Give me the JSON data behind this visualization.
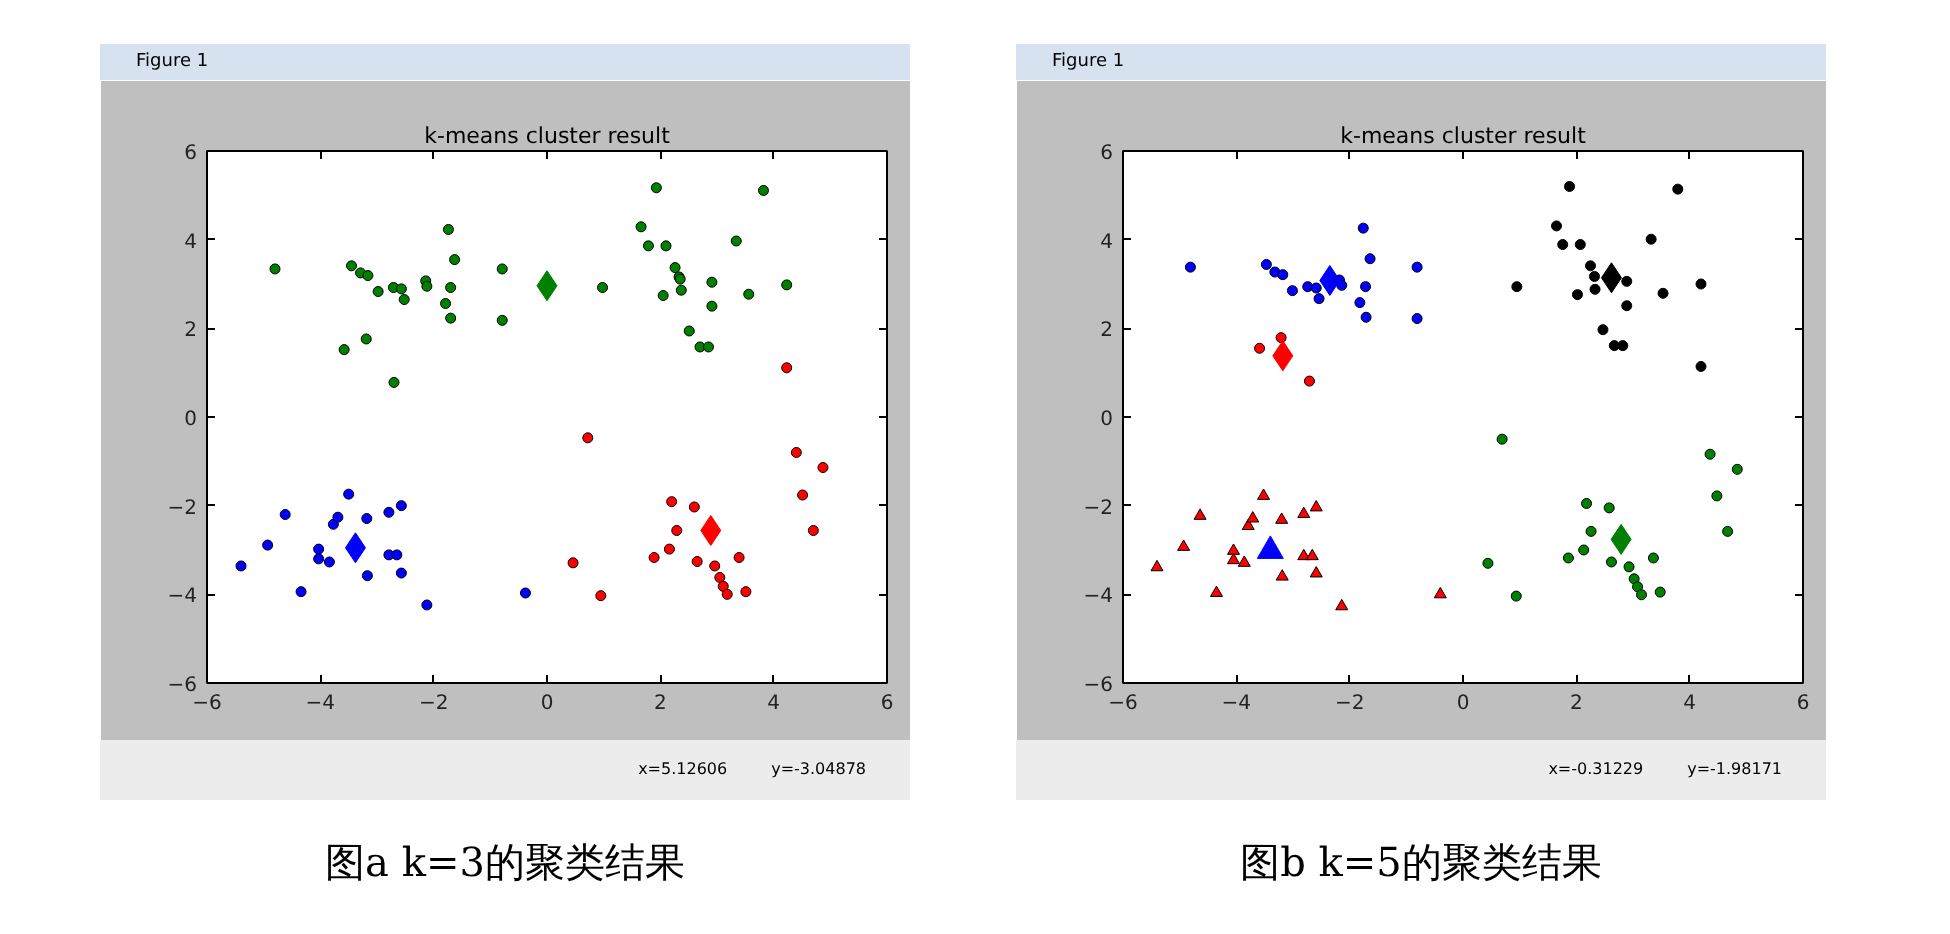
{
  "chart_data": [
    {
      "type": "scatter",
      "title": "k-means cluster result",
      "annotations": [
        "Figure 1",
        "x=5.12606",
        "y=-3.04878",
        "图a k=3的聚类结果"
      ],
      "xlim": [
        -6,
        6
      ],
      "ylim": [
        -6,
        6
      ],
      "xticks": [
        -6,
        -4,
        -2,
        0,
        2,
        4,
        6
      ],
      "yticks": [
        -6,
        -4,
        -2,
        0,
        2,
        4,
        6
      ],
      "series": [
        {
          "color": "#008000",
          "marker": "circle",
          "x": [
            -4.8,
            -3.45,
            -3.29,
            -3.16,
            -2.98,
            -2.71,
            -2.57,
            -2.52,
            -2.14,
            -2.12,
            -1.79,
            -1.74,
            -1.7,
            -1.7,
            -1.63,
            -3.58,
            -3.19,
            -2.7,
            -0.79,
            -0.79,
            0.98,
            1.66,
            1.79,
            2.1,
            1.93,
            2.26,
            2.33,
            2.35,
            2.37,
            2.05,
            2.51,
            2.7,
            2.85,
            2.91,
            2.91,
            3.34,
            3.56,
            3.82,
            4.23
          ],
          "values": [
            3.34,
            3.41,
            3.25,
            3.19,
            2.83,
            2.92,
            2.89,
            2.65,
            3.07,
            2.95,
            2.56,
            4.23,
            2.92,
            2.23,
            3.55,
            1.52,
            1.76,
            0.78,
            3.34,
            2.18,
            2.92,
            4.29,
            3.86,
            3.86,
            5.17,
            3.37,
            3.16,
            3.11,
            2.86,
            2.74,
            1.94,
            1.58,
            1.58,
            3.04,
            2.5,
            3.97,
            2.77,
            5.11,
            2.98
          ]
        },
        {
          "color": "#0000ff",
          "marker": "circle",
          "x": [
            -5.4,
            -4.93,
            -4.62,
            -4.34,
            -4.03,
            -4.03,
            -3.84,
            -3.77,
            -3.69,
            -3.5,
            -3.18,
            -3.17,
            -2.79,
            -2.79,
            -2.65,
            -2.57,
            -2.57,
            -2.12,
            -0.38
          ],
          "values": [
            -3.36,
            -2.89,
            -2.2,
            -3.94,
            -2.98,
            -3.2,
            -3.27,
            -2.42,
            -2.26,
            -1.74,
            -2.29,
            -3.58,
            -2.15,
            -3.11,
            -3.11,
            -2.0,
            -3.52,
            -4.24,
            -3.97
          ]
        },
        {
          "color": "#ff0000",
          "marker": "circle",
          "x": [
            0.72,
            0.46,
            0.95,
            1.89,
            2.16,
            2.2,
            2.29,
            2.6,
            2.65,
            2.96,
            3.05,
            3.11,
            3.18,
            3.39,
            3.51,
            4.4,
            4.51,
            4.87,
            4.7,
            4.23
          ],
          "values": [
            -0.47,
            -3.29,
            -4.03,
            -3.17,
            -2.98,
            -1.91,
            -2.56,
            -2.03,
            -3.26,
            -3.36,
            -3.62,
            -3.82,
            -4.0,
            -3.17,
            -3.94,
            -0.8,
            -1.76,
            -1.14,
            -2.56,
            1.11
          ]
        },
        {
          "color": "#008000",
          "marker": "diamond",
          "x": [
            0.0
          ],
          "values": [
            2.96
          ]
        },
        {
          "color": "#0000ff",
          "marker": "diamond",
          "x": [
            -3.38
          ],
          "values": [
            -2.95
          ]
        },
        {
          "color": "#ff0000",
          "marker": "diamond",
          "x": [
            2.89
          ],
          "values": [
            -2.56
          ]
        }
      ]
    },
    {
      "type": "scatter",
      "title": "k-means cluster result",
      "annotations": [
        "Figure 1",
        "x=-0.31229",
        "y=-1.98171",
        "图b k=5的聚类结果"
      ],
      "xlim": [
        -6,
        6
      ],
      "ylim": [
        -6,
        6
      ],
      "xticks": [
        -6,
        -4,
        -2,
        0,
        2,
        4,
        6
      ],
      "yticks": [
        -6,
        -4,
        -2,
        0,
        2,
        4,
        6
      ],
      "series": [
        {
          "color": "#ff0000",
          "marker": "triangle",
          "x": [
            -5.4,
            -4.93,
            -4.64,
            -4.35,
            -4.05,
            -4.05,
            -3.86,
            -3.79,
            -3.71,
            -3.52,
            -3.2,
            -3.19,
            -2.81,
            -2.81,
            -2.66,
            -2.59,
            -2.59,
            -2.14,
            -0.4
          ],
          "values": [
            -3.39,
            -2.93,
            -2.23,
            -3.97,
            -3.02,
            -3.23,
            -3.29,
            -2.46,
            -2.29,
            -1.78,
            -2.32,
            -3.6,
            -2.19,
            -3.14,
            -3.14,
            -2.04,
            -3.53,
            -4.27,
            -4.0
          ]
        },
        {
          "color": "#0000ff",
          "marker": "circle",
          "x": [
            -4.81,
            -3.47,
            -3.32,
            -3.18,
            -3.01,
            -2.74,
            -2.59,
            -2.54,
            -2.18,
            -2.14,
            -1.82,
            -1.76,
            -1.72,
            -1.71,
            -1.64,
            -0.81,
            -0.81
          ],
          "values": [
            3.38,
            3.44,
            3.27,
            3.21,
            2.85,
            2.94,
            2.91,
            2.67,
            3.09,
            2.97,
            2.58,
            4.26,
            2.94,
            2.25,
            3.57,
            3.38,
            2.22
          ]
        },
        {
          "color": "#ff0000",
          "marker": "circle",
          "x": [
            -3.59,
            -3.21,
            -2.71
          ],
          "values": [
            1.55,
            1.79,
            0.81
          ]
        },
        {
          "color": "#000000",
          "marker": "circle",
          "x": [
            0.95,
            1.65,
            1.76,
            2.07,
            1.88,
            2.25,
            2.32,
            2.33,
            2.02,
            2.47,
            2.67,
            2.82,
            2.89,
            2.89,
            3.32,
            3.53,
            3.79,
            4.2,
            4.2
          ],
          "values": [
            2.94,
            4.31,
            3.89,
            3.89,
            5.2,
            3.41,
            3.17,
            2.88,
            2.76,
            1.97,
            1.61,
            1.61,
            3.06,
            2.51,
            4.01,
            2.79,
            5.14,
            3.0,
            1.14
          ]
        },
        {
          "color": "#008000",
          "marker": "circle",
          "x": [
            0.69,
            0.44,
            0.94,
            1.86,
            2.13,
            2.18,
            2.26,
            2.58,
            2.62,
            2.93,
            3.02,
            3.08,
            3.15,
            3.36,
            3.48,
            4.36,
            4.48,
            4.84,
            4.67
          ],
          "values": [
            -0.5,
            -3.3,
            -4.04,
            -3.18,
            -3.0,
            -1.95,
            -2.58,
            -2.05,
            -3.27,
            -3.38,
            -3.65,
            -3.83,
            -4.01,
            -3.18,
            -3.95,
            -0.84,
            -1.78,
            -1.18,
            -2.58
          ]
        },
        {
          "color": "#0000ff",
          "marker": "triangle",
          "x": [
            -3.4
          ],
          "values": [
            -3.02
          ]
        },
        {
          "color": "#0000ff",
          "marker": "diamond",
          "x": [
            -2.35
          ],
          "values": [
            3.08
          ]
        },
        {
          "color": "#ff0000",
          "marker": "diamond",
          "x": [
            -3.18
          ],
          "values": [
            1.38
          ]
        },
        {
          "color": "#000000",
          "marker": "diamond",
          "x": [
            2.62
          ],
          "values": [
            3.14
          ]
        },
        {
          "color": "#008000",
          "marker": "diamond",
          "x": [
            2.79
          ],
          "values": [
            -2.76
          ]
        }
      ]
    }
  ]
}
